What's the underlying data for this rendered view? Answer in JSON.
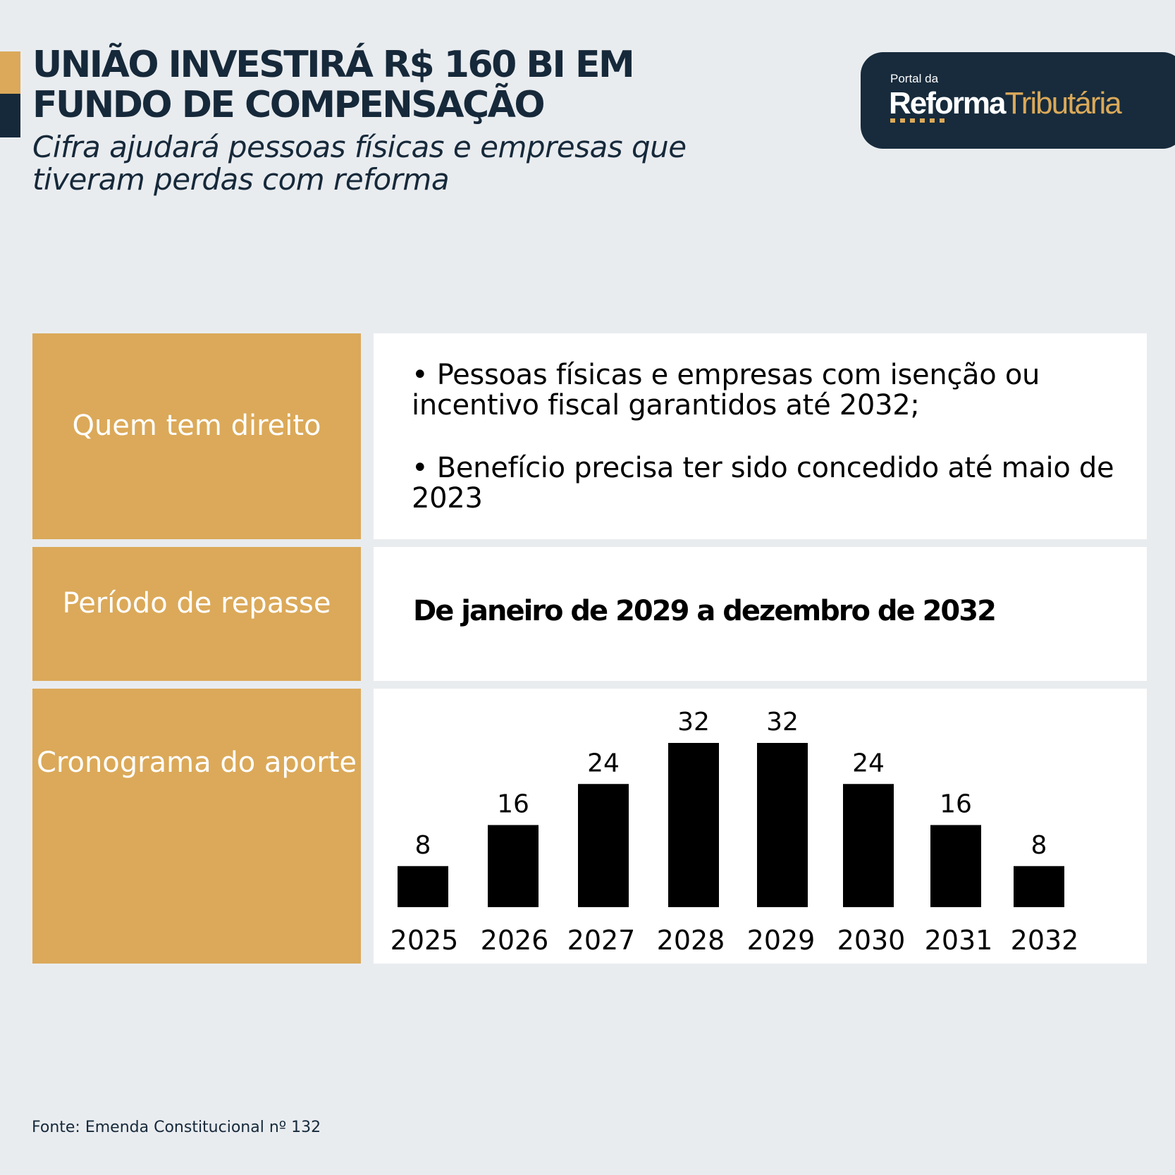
{
  "header": {
    "title": "UNIÃO INVESTIRÁ R$ 160 BI EM FUNDO DE COMPENSAÇÃO",
    "subtitle": "Cifra ajudará pessoas físicas e empresas que tiveram perdas com reforma"
  },
  "logo": {
    "small": "Portal da",
    "main_white": "Reforma",
    "main_gold": "Tributária"
  },
  "rows": [
    {
      "label": "Quem tem direito",
      "bullets": [
        "• Pessoas físicas e empresas com isenção ou incentivo fiscal garantidos até 2032;",
        "• Benefício precisa ter sido concedido até maio de 2023"
      ]
    },
    {
      "label": "Período de repasse",
      "value": "De janeiro de 2029 a dezembro de 2032"
    },
    {
      "label": "Cronograma do aporte"
    }
  ],
  "chart_data": {
    "type": "bar",
    "title": "Cronograma do aporte",
    "categories": [
      "2025",
      "2026",
      "2027",
      "2028",
      "2029",
      "2030",
      "2031",
      "2032"
    ],
    "values": [
      8,
      16,
      24,
      32,
      32,
      24,
      16,
      8
    ],
    "xlabel": "",
    "ylabel": "",
    "ylim": [
      0,
      32
    ],
    "grid": false,
    "data_labels": true,
    "bar_color": "#000000"
  },
  "footer": {
    "source": "Fonte: Emenda Constitucional nº 132"
  },
  "colors": {
    "background": "#e9ecef",
    "navy": "#16293a",
    "gold": "#dba959",
    "white": "#ffffff"
  }
}
